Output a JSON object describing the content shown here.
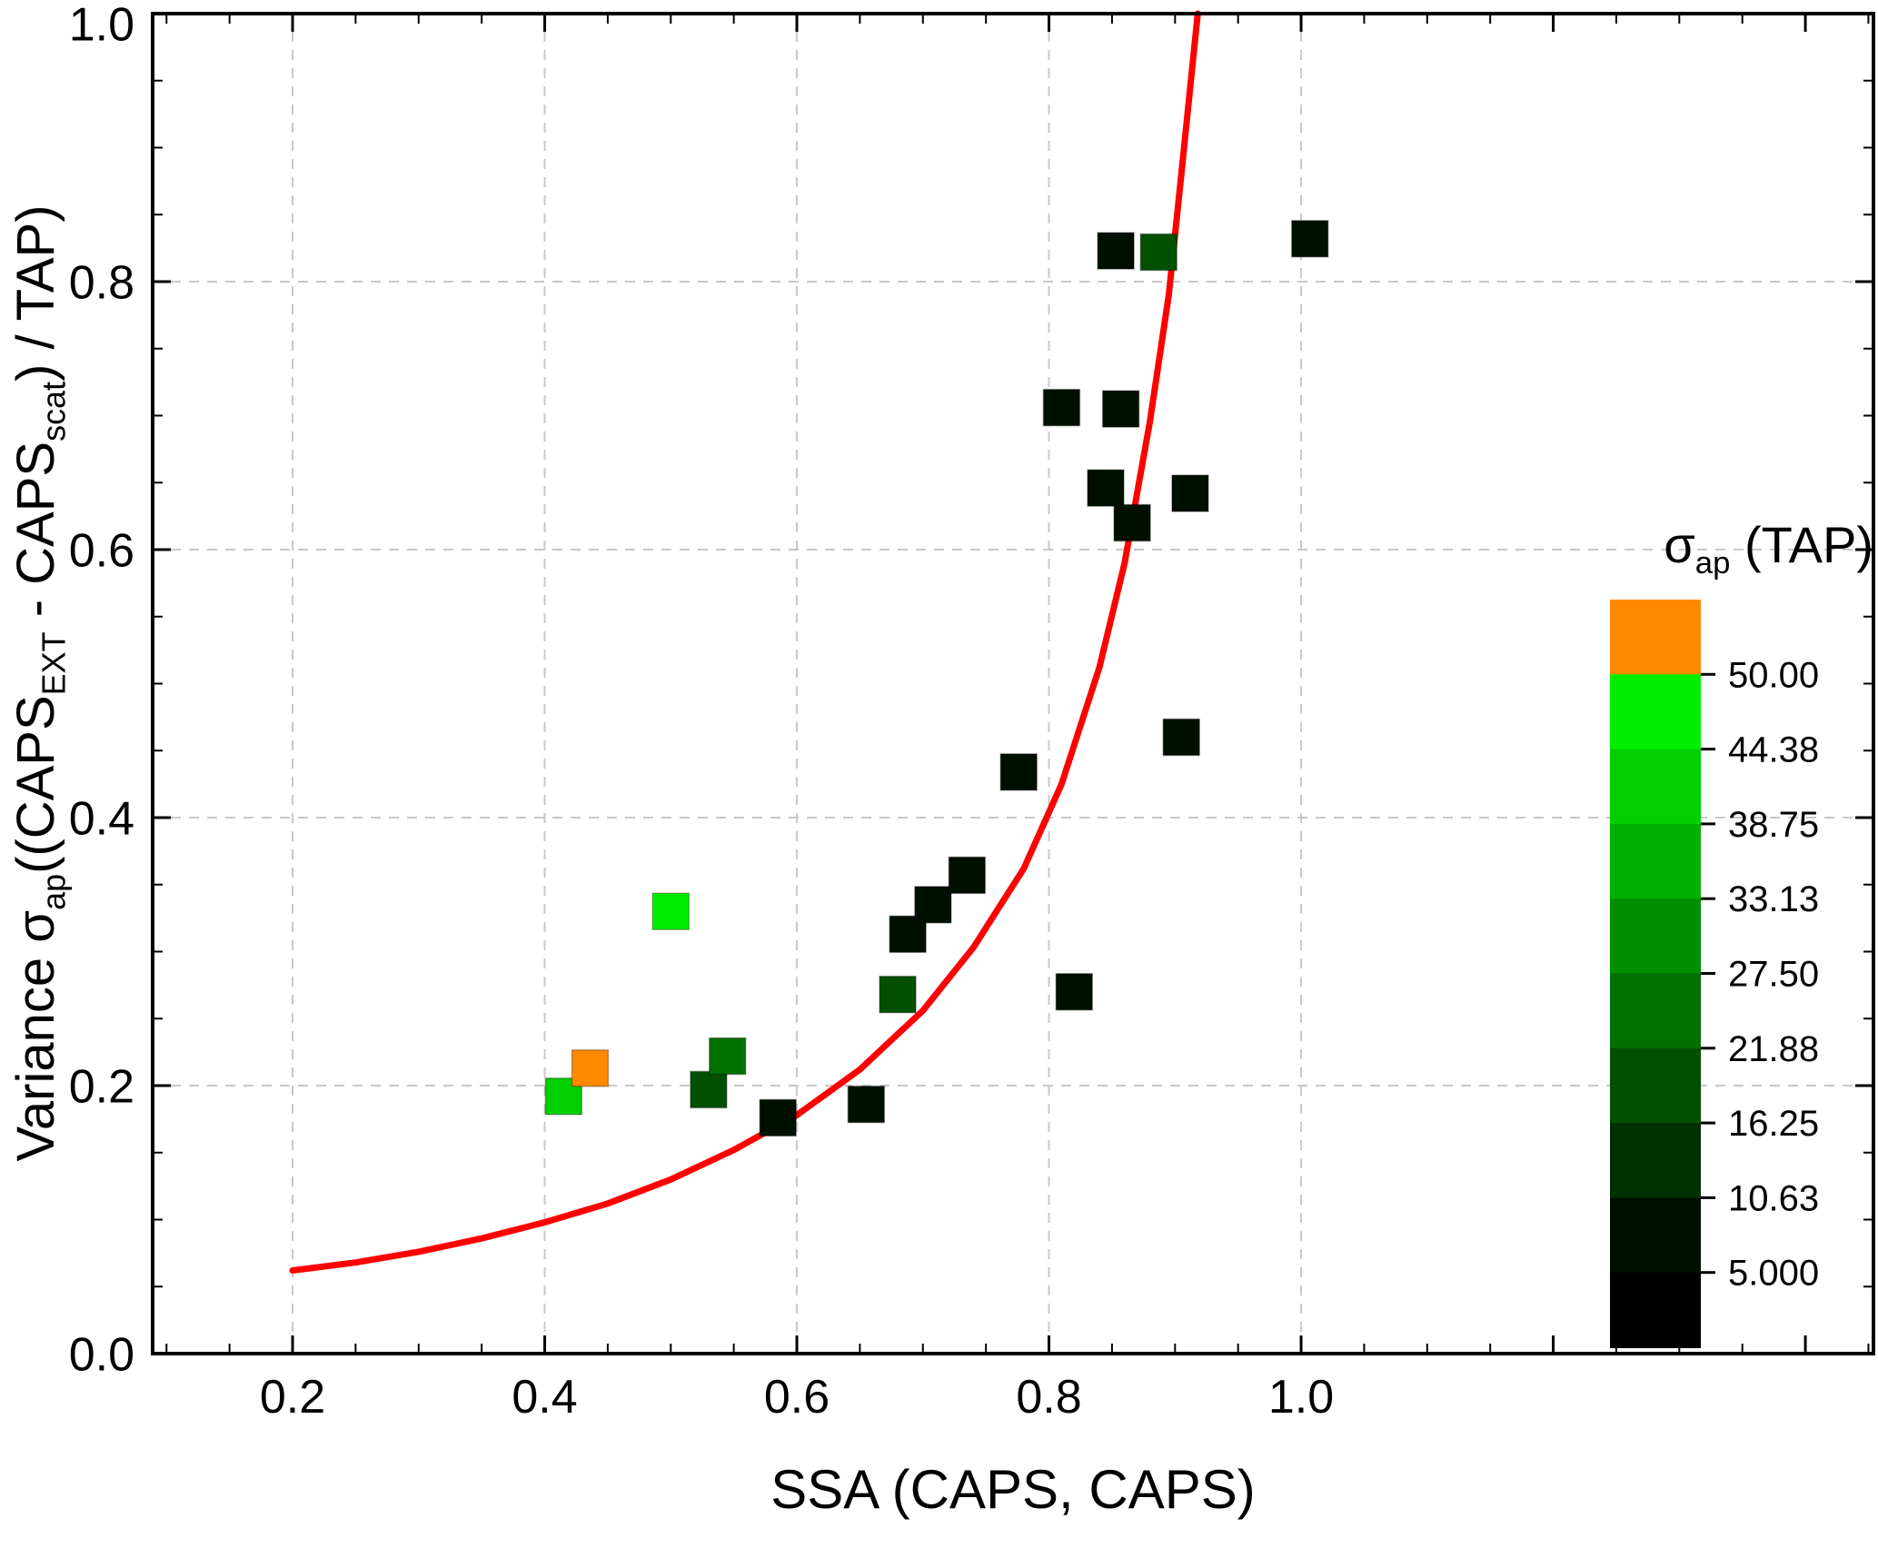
{
  "chart_data": {
    "type": "scatter",
    "title": "",
    "xlabel": "SSA (CAPS, CAPS)",
    "ylabel_parts": [
      {
        "t": "Variance σ"
      },
      {
        "t": "ap",
        "sub": true
      },
      {
        "t": "((CAPS"
      },
      {
        "t": "EXT",
        "sub": true
      },
      {
        "t": " - CAPS"
      },
      {
        "t": "scat",
        "sub": true
      },
      {
        "t": ") / TAP)"
      }
    ],
    "xlim": [
      0.089,
      1.454
    ],
    "ylim": [
      0.0,
      1.0
    ],
    "x_ticks": [
      0.2,
      0.4,
      0.6,
      0.8,
      1.0
    ],
    "x_tick_labels": [
      "0.2",
      "0.4",
      "0.6",
      "0.8",
      "1.0"
    ],
    "y_ticks": [
      0.0,
      0.2,
      0.4,
      0.6,
      0.8,
      1.0
    ],
    "y_tick_labels": [
      "0.0",
      "0.2",
      "0.4",
      "0.6",
      "0.8",
      "1.0"
    ],
    "minor_step": 0.05,
    "grid": true,
    "marker": {
      "shape": "square",
      "size": 40
    },
    "points": [
      {
        "x": 0.415,
        "y": 0.192,
        "v": 40
      },
      {
        "x": 0.436,
        "y": 0.213,
        "v": 55
      },
      {
        "x": 0.5,
        "y": 0.33,
        "v": 46
      },
      {
        "x": 0.53,
        "y": 0.197,
        "v": 20
      },
      {
        "x": 0.545,
        "y": 0.222,
        "v": 23
      },
      {
        "x": 0.585,
        "y": 0.176,
        "v": 5
      },
      {
        "x": 0.655,
        "y": 0.186,
        "v": 5
      },
      {
        "x": 0.68,
        "y": 0.268,
        "v": 20
      },
      {
        "x": 0.688,
        "y": 0.313,
        "v": 7
      },
      {
        "x": 0.708,
        "y": 0.335,
        "v": 6
      },
      {
        "x": 0.735,
        "y": 0.357,
        "v": 5
      },
      {
        "x": 0.776,
        "y": 0.434,
        "v": 5
      },
      {
        "x": 0.81,
        "y": 0.706,
        "v": 6
      },
      {
        "x": 0.82,
        "y": 0.27,
        "v": 5
      },
      {
        "x": 0.845,
        "y": 0.646,
        "v": 5
      },
      {
        "x": 0.853,
        "y": 0.823,
        "v": 5
      },
      {
        "x": 0.857,
        "y": 0.705,
        "v": 6
      },
      {
        "x": 0.866,
        "y": 0.62,
        "v": 5
      },
      {
        "x": 0.887,
        "y": 0.822,
        "v": 17
      },
      {
        "x": 0.905,
        "y": 0.46,
        "v": 5
      },
      {
        "x": 0.912,
        "y": 0.642,
        "v": 5
      },
      {
        "x": 1.007,
        "y": 0.832,
        "v": 5
      }
    ],
    "fit_curve": {
      "color": "#ff0000",
      "x": [
        0.2,
        0.25,
        0.3,
        0.35,
        0.4,
        0.45,
        0.5,
        0.55,
        0.6,
        0.65,
        0.7,
        0.74,
        0.78,
        0.81,
        0.84,
        0.86,
        0.88,
        0.895,
        0.905,
        0.912,
        0.918
      ],
      "y": [
        0.062,
        0.068,
        0.076,
        0.086,
        0.098,
        0.112,
        0.13,
        0.152,
        0.178,
        0.212,
        0.256,
        0.303,
        0.362,
        0.425,
        0.512,
        0.59,
        0.695,
        0.79,
        0.88,
        0.945,
        1.0
      ]
    },
    "colorbar": {
      "title_parts": [
        {
          "t": "σ"
        },
        {
          "t": "ap",
          "sub": true
        },
        {
          "t": " (TAP)"
        }
      ],
      "min": 5.0,
      "max": 50.0,
      "bins": 8,
      "tick_labels": [
        "50.00",
        "44.38",
        "38.75",
        "33.13",
        "27.50",
        "21.88",
        "16.25",
        "10.63",
        "5.000"
      ],
      "over_color": "#ff8a00",
      "under_color": "#000000",
      "gradient_low": "#000000",
      "gradient_high": "#00ff00"
    },
    "colors": {
      "background": "#ffffff",
      "frame": "#000000",
      "grid": "#c8c8c8",
      "fit_line": "#ff0000"
    }
  }
}
